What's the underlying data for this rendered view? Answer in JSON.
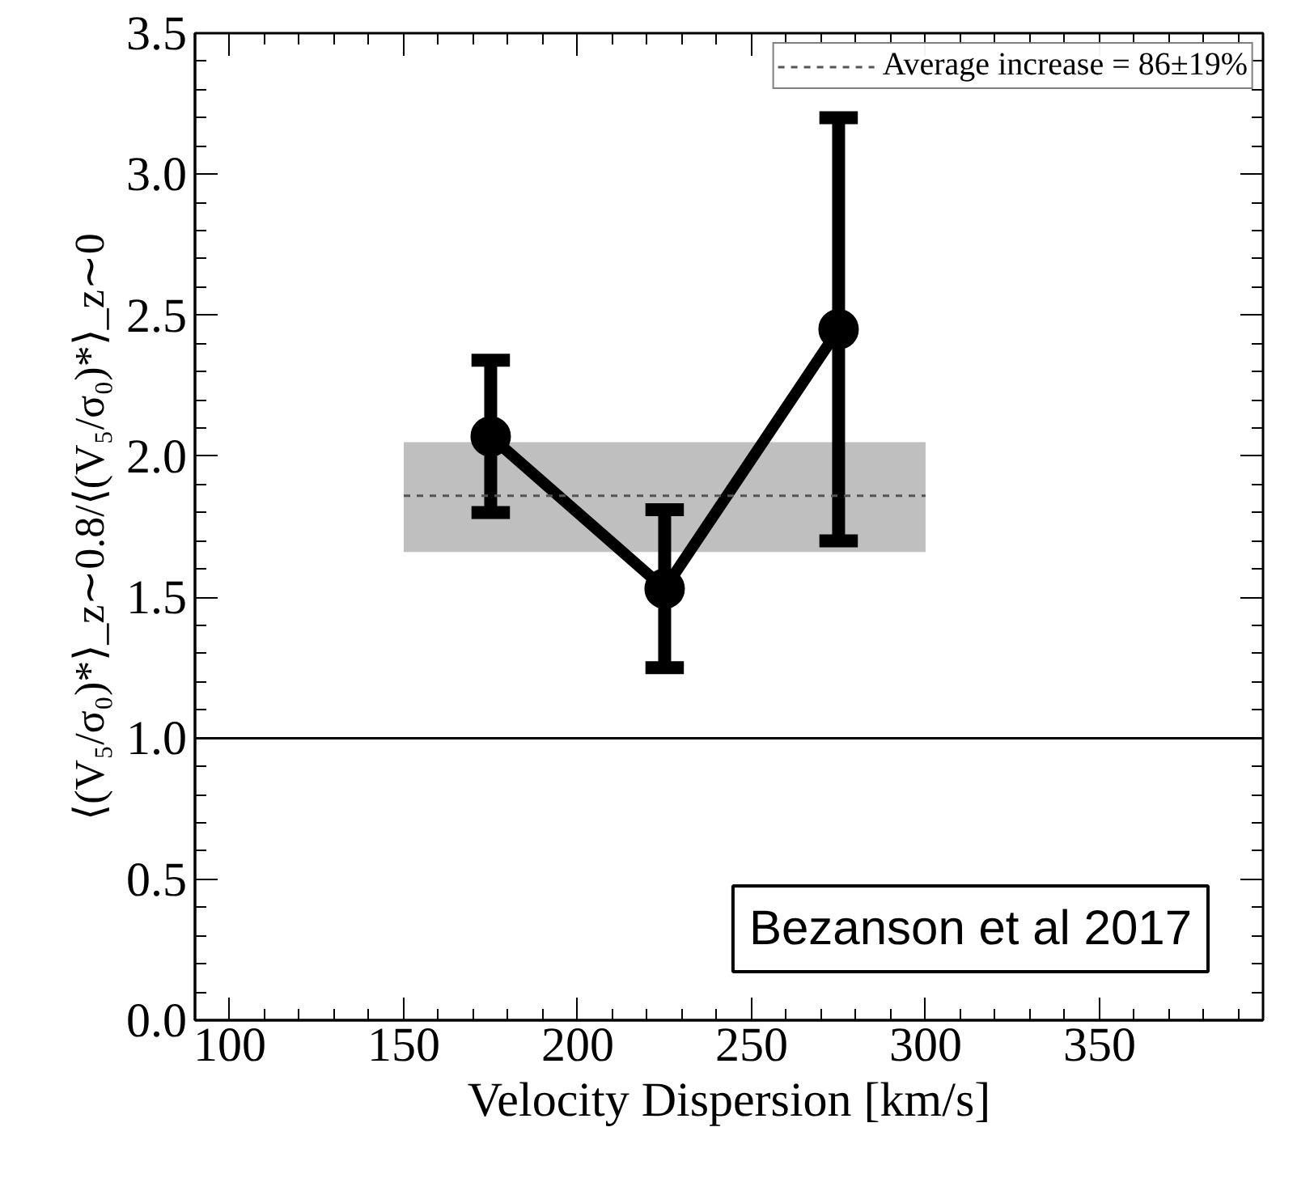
{
  "chart_data": {
    "type": "line",
    "xlabel": "Velocity Dispersion [km/s]",
    "ylabel": "⟨(V₅/σ₀)*⟩_z∼0.8/⟨(V₅/σ₀)*⟩_z∼0",
    "x": [
      175,
      225,
      275
    ],
    "series": [
      {
        "color": "#000000",
        "values": [
          2.07,
          1.53,
          2.45
        ],
        "errors": [
          0.27,
          0.28,
          0.75
        ],
        "marker": "circle",
        "line_style": "solid"
      },
      {
        "name": "Average increase = 86±19%",
        "color": "#555555",
        "x": [
          150,
          300
        ],
        "values": [
          1.86,
          1.86
        ],
        "lower": [
          1.66,
          1.66
        ],
        "upper": [
          2.05,
          2.05
        ],
        "marker": "none",
        "line_style": "dashed"
      }
    ],
    "ref_lines": [
      {
        "axis": "y",
        "value": 1.0,
        "color": "#000000",
        "line_style": "solid"
      }
    ],
    "annotations": [
      "Bezanson et al 2017"
    ],
    "xlim": [
      90,
      397
    ],
    "xticks": [
      100,
      150,
      200,
      250,
      300,
      350
    ],
    "ylim": [
      0,
      3.5
    ],
    "yticks": [
      {
        "value": 0,
        "label": "0.0"
      },
      0.5,
      {
        "value": 1,
        "label": "1.0"
      },
      1.5,
      {
        "value": 2,
        "label": "2.0"
      },
      2.5,
      {
        "value": 3,
        "label": "3.0"
      },
      3.5
    ],
    "grid": false,
    "legend": "top right"
  }
}
